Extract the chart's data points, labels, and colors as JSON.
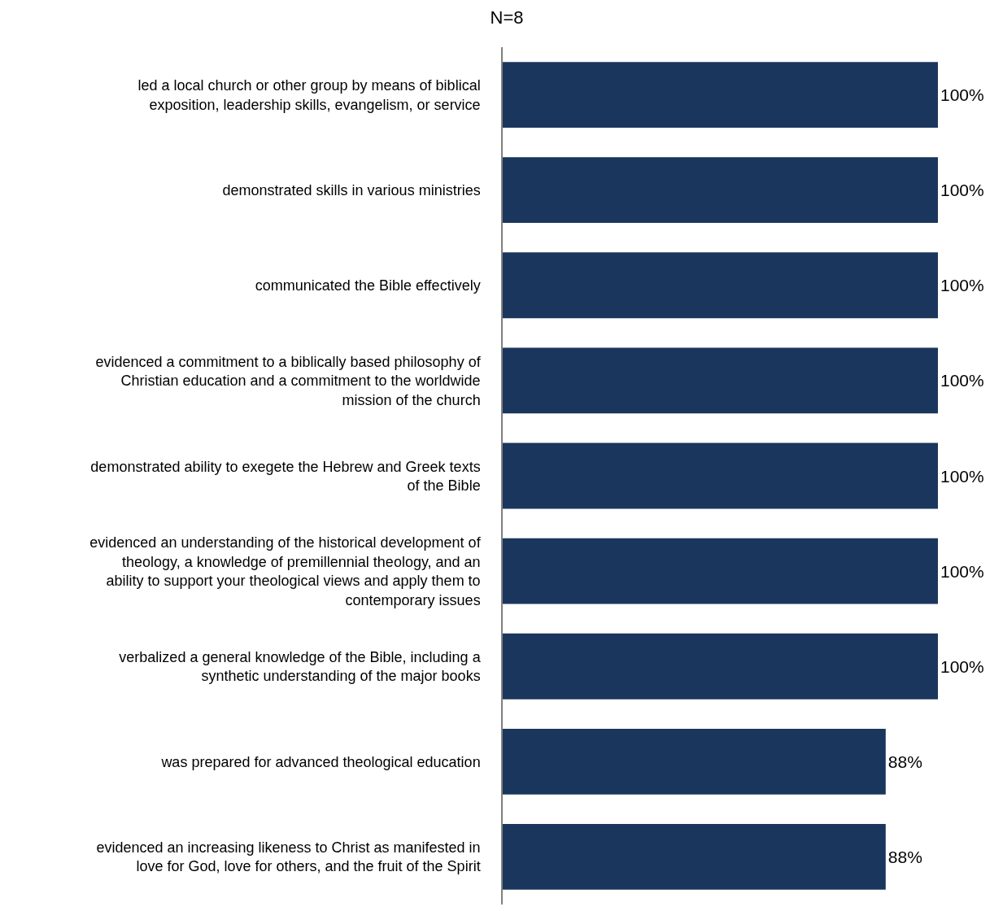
{
  "chart_data": {
    "type": "bar",
    "orientation": "horizontal",
    "title": "N=8",
    "categories": [
      "led a local church or other group by means of biblical exposition, leadership skills, evangelism, or service",
      "demonstrated skills in various ministries",
      "communicated the Bible effectively",
      "evidenced a commitment to a biblically based philosophy of Christian education and a commitment to the worldwide mission of the church",
      "demonstrated ability to exegete the Hebrew and Greek texts of the Bible",
      "evidenced an understanding of the historical development of theology, a knowledge of premillennial theology, and an ability to support your theological views and apply them to contemporary issues",
      "verbalized a general knowledge of the Bible, including a synthetic understanding of the major books",
      "was prepared for advanced theological education",
      "evidenced an increasing likeness to Christ as manifested in love for God, love for others, and the fruit of the Spirit"
    ],
    "values": [
      100,
      100,
      100,
      100,
      100,
      100,
      100,
      88,
      88
    ],
    "value_labels": [
      "100%",
      "100%",
      "100%",
      "100%",
      "100%",
      "100%",
      "100%",
      "88%",
      "88%"
    ],
    "color": "#1b365d",
    "legend": false
  }
}
